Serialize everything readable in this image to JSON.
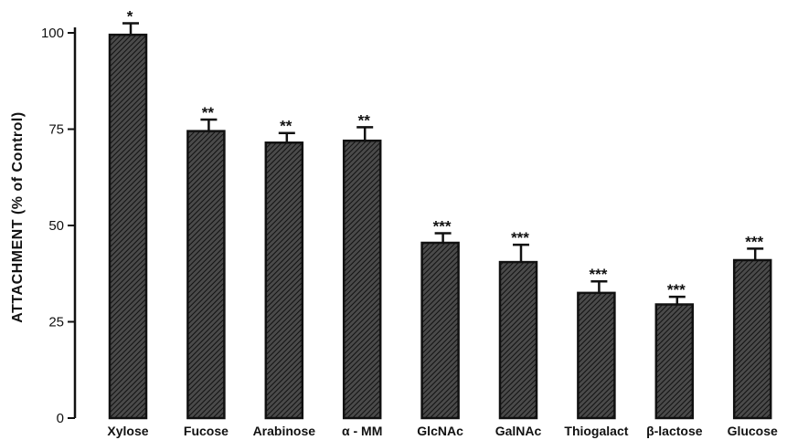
{
  "chart_data": {
    "type": "bar",
    "ylabel": "ATTACHMENT (% of Control)",
    "xlabel": "",
    "ylim": [
      0,
      100
    ],
    "yticks": [
      0,
      25,
      50,
      75,
      100
    ],
    "categories": [
      "Xylose",
      "Fucose",
      "Arabinose",
      "α - MM",
      "GlcNAc",
      "GalNAc",
      "Thiogalact",
      "β-lactose",
      "Glucose"
    ],
    "values": [
      99.5,
      74.5,
      71.5,
      72,
      45.5,
      40.5,
      32.5,
      29.5,
      41
    ],
    "errors": [
      3,
      3,
      2.5,
      3.5,
      2.5,
      4.5,
      3,
      2,
      3
    ],
    "significance": [
      "*",
      "**",
      "**",
      "**",
      "***",
      "***",
      "***",
      "***",
      "***"
    ],
    "grid": false,
    "bar_color": "#1a1a1a"
  }
}
